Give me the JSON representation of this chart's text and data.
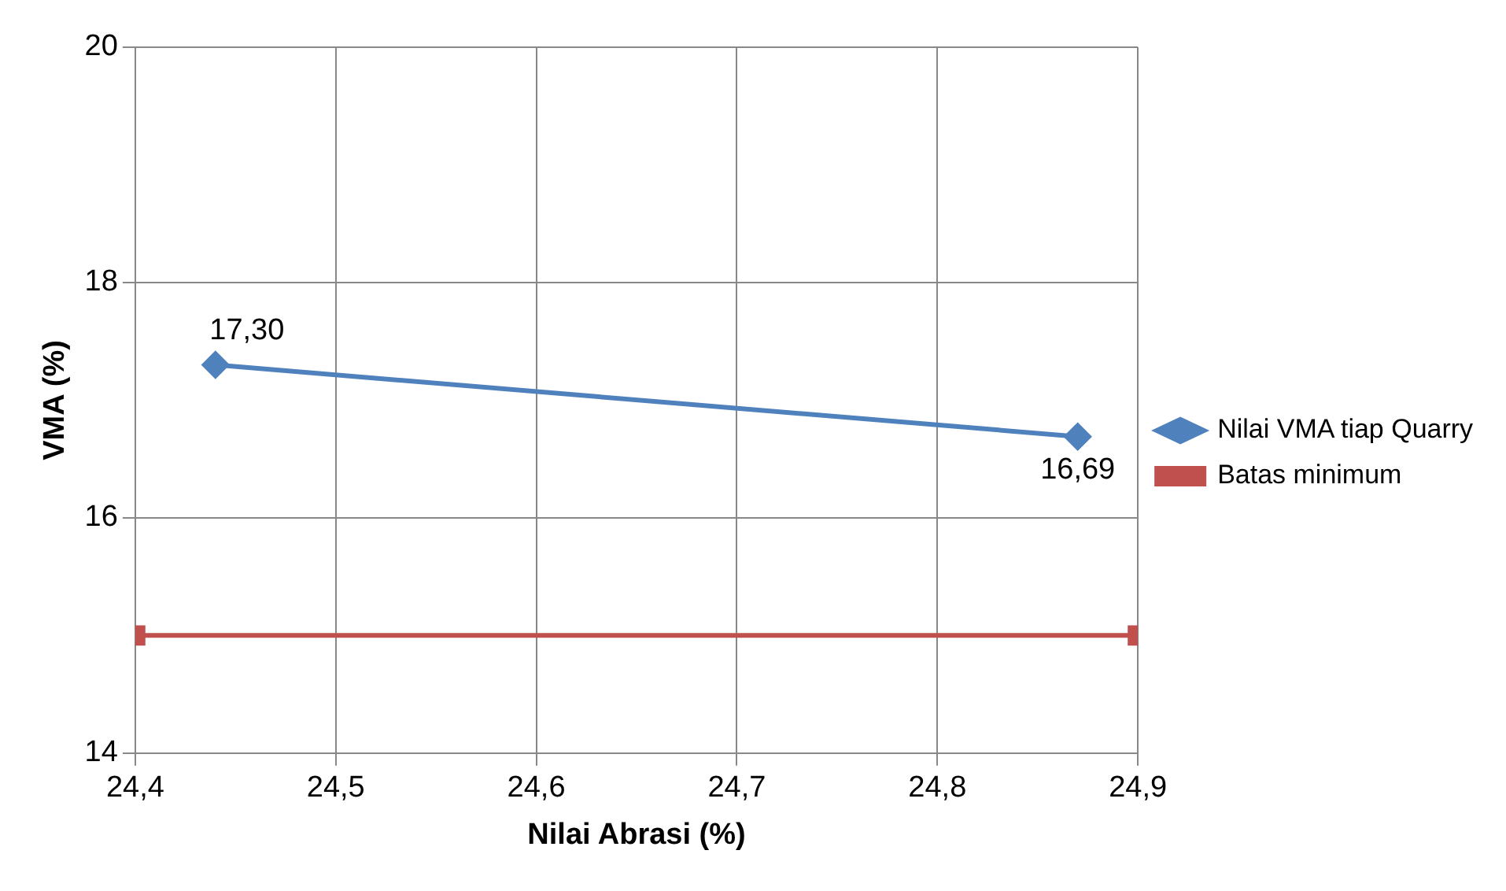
{
  "chart_data": {
    "type": "line",
    "xlabel": "Nilai Abrasi (%)",
    "ylabel": "VMA (%)",
    "series": [
      {
        "name": "Nilai VMA tiap Quarry",
        "color": "#4f81bd",
        "marker": "diamond",
        "x": [
          24.44,
          24.87
        ],
        "values": [
          17.3,
          16.69
        ],
        "value_labels": [
          "17,30",
          "16,69"
        ]
      },
      {
        "name": "Batas minimum",
        "color": "#c0504d",
        "marker": "square",
        "x": [
          24.4,
          24.9
        ],
        "values": [
          15,
          15
        ]
      }
    ],
    "xlim": [
      24.4,
      24.9
    ],
    "xticks": [
      {
        "value": 24.4,
        "label": "24,4"
      },
      {
        "value": 24.5,
        "label": "24,5"
      },
      {
        "value": 24.6,
        "label": "24,6"
      },
      {
        "value": 24.7,
        "label": "24,7"
      },
      {
        "value": 24.8,
        "label": "24,8"
      },
      {
        "value": 24.9,
        "label": "24,9"
      }
    ],
    "ylim": [
      14,
      20
    ],
    "yticks": [
      14,
      16,
      18,
      20
    ],
    "grid": true,
    "legend": "right",
    "line_style": "solid"
  }
}
